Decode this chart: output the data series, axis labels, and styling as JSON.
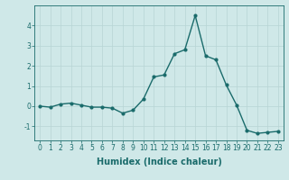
{
  "x": [
    0,
    1,
    2,
    3,
    4,
    5,
    6,
    7,
    8,
    9,
    10,
    11,
    12,
    13,
    14,
    15,
    16,
    17,
    18,
    19,
    20,
    21,
    22,
    23
  ],
  "y": [
    0.0,
    -0.05,
    0.1,
    0.15,
    0.05,
    -0.05,
    -0.05,
    -0.1,
    -0.35,
    -0.2,
    0.35,
    1.45,
    1.55,
    2.6,
    2.8,
    4.5,
    2.5,
    2.3,
    1.05,
    0.05,
    -1.2,
    -1.35,
    -1.3,
    -1.25
  ],
  "line_color": "#1a6b6b",
  "marker": "o",
  "markersize": 2.0,
  "linewidth": 1.0,
  "xlabel": "Humidex (Indice chaleur)",
  "ylabel": "",
  "xlim": [
    -0.5,
    23.5
  ],
  "ylim": [
    -1.7,
    5.0
  ],
  "yticks": [
    -1,
    0,
    1,
    2,
    3,
    4
  ],
  "xticks": [
    0,
    1,
    2,
    3,
    4,
    5,
    6,
    7,
    8,
    9,
    10,
    11,
    12,
    13,
    14,
    15,
    16,
    17,
    18,
    19,
    20,
    21,
    22,
    23
  ],
  "bg_color": "#cfe8e8",
  "grid_color": "#b8d4d4",
  "tick_label_fontsize": 5.5,
  "xlabel_fontsize": 7.0
}
